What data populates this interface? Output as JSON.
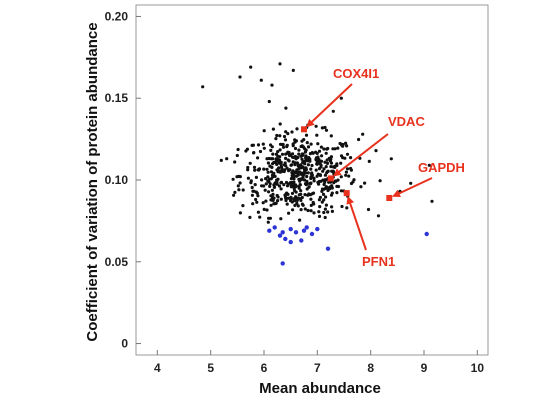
{
  "chart_data": {
    "type": "scatter",
    "xlabel": "Mean abundance",
    "ylabel": "Coefficient of variation of protein abundance",
    "xlim": [
      3.6,
      10.2
    ],
    "ylim": [
      -0.007,
      0.207
    ],
    "xticks": [
      4,
      5,
      6,
      7,
      8,
      9,
      10
    ],
    "yticks": [
      0,
      0.05,
      0.1,
      0.15,
      0.2
    ],
    "ytick_labels": [
      "0",
      "0.05",
      "0.10",
      "0.15",
      "0.20"
    ],
    "grid": false,
    "colors": {
      "points": "#111111",
      "low_cv_points": "#2d34d6",
      "highlight": "#e8321e"
    },
    "low_cv_points": [
      [
        6.1,
        0.069
      ],
      [
        6.2,
        0.071
      ],
      [
        6.3,
        0.066
      ],
      [
        6.4,
        0.064
      ],
      [
        6.5,
        0.07
      ],
      [
        6.6,
        0.068
      ],
      [
        6.7,
        0.063
      ],
      [
        6.8,
        0.071
      ],
      [
        6.9,
        0.067
      ],
      [
        7.0,
        0.07
      ],
      [
        6.5,
        0.062
      ],
      [
        6.35,
        0.068
      ],
      [
        6.75,
        0.069
      ],
      [
        7.2,
        0.058
      ],
      [
        6.35,
        0.049
      ],
      [
        9.05,
        0.067
      ]
    ],
    "highlighted": [
      {
        "label": "COX4I1",
        "x": 6.75,
        "y": 0.131
      },
      {
        "label": "VDAC",
        "x": 7.25,
        "y": 0.101
      },
      {
        "label": "PFN1",
        "x": 7.55,
        "y": 0.092
      },
      {
        "label": "GAPDH",
        "x": 8.35,
        "y": 0.089
      }
    ]
  }
}
